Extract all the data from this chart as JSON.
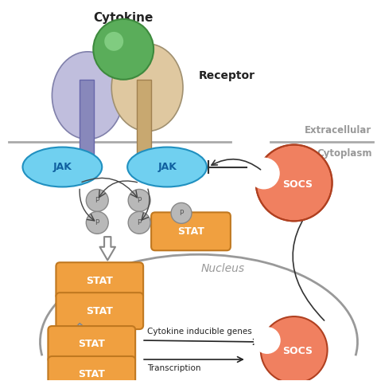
{
  "bg_color": "#ffffff",
  "membrane_color": "#aaaaaa",
  "receptor_left_color": "#c0bedd",
  "receptor_left_stem": "#9090b8",
  "receptor_right_color": "#dfc8a0",
  "receptor_right_stem": "#c8a878",
  "cytokine_color": "#5aad5a",
  "cytokine_edge": "#3d8a3d",
  "jak_color": "#70d0f0",
  "jak_edge": "#2090c0",
  "jak_text_color": "#1060a0",
  "stat_color": "#f0a040",
  "stat_edge": "#c07820",
  "socs_color_top": "#f08060",
  "socs_color_bot": "#d05030",
  "socs_edge": "#b04020",
  "p_color": "#b8b8b8",
  "p_edge": "#888888",
  "arrow_color": "#333333",
  "text_gray": "#999999",
  "text_dark": "#222222",
  "extracellular_text": "Extracellular",
  "cytoplasm_text": "Cytoplasm",
  "nucleus_text": "Nucleus",
  "cytokine_text": "Cytokine",
  "receptor_text": "Receptor",
  "transcription_text": "Transcription",
  "cytokine_genes_text": "Cytokine inducible genes",
  "jak_text": "JAK",
  "stat_text": "STAT",
  "socs_text": "SOCS",
  "p_text": "P"
}
